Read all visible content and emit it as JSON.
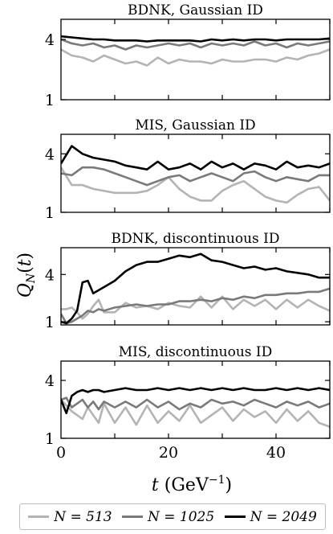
{
  "chart_data": [
    {
      "type": "line",
      "title": "BDNK, Gaussian ID",
      "ylim": [
        1,
        5
      ],
      "yticks": [
        "4",
        "1"
      ],
      "xlim": [
        0,
        50
      ],
      "x": [
        0,
        2,
        4,
        6,
        8,
        10,
        12,
        14,
        16,
        18,
        20,
        22,
        24,
        26,
        28,
        30,
        32,
        34,
        36,
        38,
        40,
        42,
        44,
        46,
        48,
        50
      ],
      "series": [
        {
          "name": "N = 513",
          "color": "#b4b4b4",
          "values": [
            3.5,
            3.2,
            3.1,
            2.9,
            3.2,
            3.0,
            2.8,
            2.9,
            2.7,
            3.1,
            2.8,
            3.0,
            2.9,
            2.9,
            2.8,
            3.0,
            2.9,
            2.9,
            3.0,
            3.0,
            2.9,
            3.1,
            3.0,
            3.2,
            3.3,
            3.5
          ]
        },
        {
          "name": "N = 1025",
          "color": "#7a7a7a",
          "values": [
            4.0,
            3.8,
            3.7,
            3.8,
            3.6,
            3.7,
            3.5,
            3.7,
            3.6,
            3.7,
            3.8,
            3.7,
            3.8,
            3.6,
            3.8,
            3.7,
            3.8,
            3.7,
            3.9,
            3.7,
            3.8,
            3.6,
            3.8,
            3.7,
            3.8,
            3.9
          ]
        },
        {
          "name": "N = 2049",
          "color": "#000000",
          "values": [
            4.15,
            4.1,
            4.05,
            4.0,
            4.0,
            3.95,
            3.95,
            3.95,
            3.9,
            3.95,
            3.95,
            3.95,
            3.95,
            3.9,
            4.0,
            3.95,
            4.0,
            3.95,
            4.0,
            4.0,
            3.95,
            4.0,
            4.0,
            4.0,
            4.0,
            4.05
          ]
        }
      ]
    },
    {
      "type": "line",
      "title": "MIS, Gaussian ID",
      "ylim": [
        1,
        5
      ],
      "yticks": [
        "4",
        "1"
      ],
      "xlim": [
        0,
        50
      ],
      "x": [
        0,
        2,
        4,
        6,
        8,
        10,
        12,
        14,
        16,
        18,
        20,
        22,
        24,
        26,
        28,
        30,
        32,
        34,
        36,
        38,
        40,
        42,
        44,
        46,
        48,
        50
      ],
      "series": [
        {
          "name": "N = 513",
          "color": "#b4b4b4",
          "values": [
            3.3,
            2.4,
            2.4,
            2.2,
            2.1,
            2.0,
            2.0,
            2.0,
            2.1,
            2.4,
            2.8,
            2.2,
            1.8,
            1.6,
            1.6,
            2.1,
            2.4,
            2.6,
            2.2,
            1.8,
            1.6,
            1.5,
            1.9,
            2.2,
            2.3,
            1.6
          ]
        },
        {
          "name": "N = 1025",
          "color": "#7a7a7a",
          "values": [
            3.0,
            2.9,
            3.3,
            3.3,
            3.2,
            3.0,
            2.8,
            2.6,
            2.4,
            2.6,
            2.8,
            2.9,
            2.6,
            2.8,
            3.0,
            2.8,
            2.6,
            3.0,
            3.1,
            2.8,
            2.6,
            2.8,
            2.7,
            2.6,
            2.9,
            2.9
          ]
        },
        {
          "name": "N = 2049",
          "color": "#000000",
          "values": [
            3.5,
            4.4,
            4.0,
            3.8,
            3.7,
            3.6,
            3.4,
            3.3,
            3.2,
            3.6,
            3.2,
            3.3,
            3.5,
            3.2,
            3.6,
            3.3,
            3.5,
            3.2,
            3.5,
            3.4,
            3.2,
            3.6,
            3.3,
            3.4,
            3.3,
            3.5
          ]
        }
      ]
    },
    {
      "type": "line",
      "title": "BDNK, discontinuous ID",
      "ylim": [
        0.8,
        5.7
      ],
      "yticks": [
        "4",
        "1"
      ],
      "xlim": [
        0,
        50
      ],
      "x": [
        0,
        1,
        2,
        3,
        4,
        5,
        6,
        7,
        8,
        10,
        12,
        14,
        16,
        18,
        20,
        22,
        24,
        26,
        28,
        30,
        32,
        34,
        36,
        38,
        40,
        42,
        44,
        46,
        48,
        50
      ],
      "series": [
        {
          "name": "N = 513",
          "color": "#b4b4b4",
          "values": [
            1.8,
            1.8,
            1.9,
            1.6,
            1.2,
            1.5,
            2.0,
            2.4,
            1.6,
            1.6,
            2.2,
            1.9,
            2.0,
            1.8,
            2.2,
            2.0,
            1.9,
            2.6,
            1.9,
            2.6,
            1.8,
            2.4,
            2.0,
            2.4,
            1.8,
            2.4,
            1.9,
            2.4,
            2.0,
            1.7
          ]
        },
        {
          "name": "N = 1025",
          "color": "#7a7a7a",
          "values": [
            1.5,
            0.9,
            1.0,
            1.2,
            1.4,
            1.7,
            1.6,
            1.8,
            1.7,
            1.9,
            2.0,
            2.1,
            2.0,
            2.1,
            2.1,
            2.3,
            2.3,
            2.4,
            2.3,
            2.5,
            2.4,
            2.6,
            2.5,
            2.7,
            2.7,
            2.8,
            2.8,
            2.9,
            2.9,
            3.1
          ]
        },
        {
          "name": "N = 2049",
          "color": "#000000",
          "values": [
            1.0,
            0.9,
            1.2,
            1.7,
            3.5,
            3.6,
            2.8,
            3.0,
            3.2,
            3.6,
            4.2,
            4.6,
            4.8,
            4.8,
            5.0,
            5.2,
            5.1,
            5.3,
            4.9,
            4.8,
            4.6,
            4.4,
            4.5,
            4.3,
            4.4,
            4.2,
            4.1,
            4.0,
            3.8,
            3.8
          ]
        }
      ]
    },
    {
      "type": "line",
      "title": "MIS, discontinuous ID",
      "ylim": [
        1,
        5
      ],
      "yticks": [
        "4",
        "1"
      ],
      "xlim": [
        0,
        50
      ],
      "xticks": [
        "0",
        "20",
        "40"
      ],
      "xtick_values": [
        0,
        20,
        40
      ],
      "x": [
        0,
        1,
        2,
        3,
        4,
        5,
        6,
        7,
        8,
        10,
        12,
        14,
        16,
        18,
        20,
        22,
        24,
        26,
        28,
        30,
        32,
        34,
        36,
        38,
        40,
        42,
        44,
        46,
        48,
        50
      ],
      "series": [
        {
          "name": "N = 513",
          "color": "#b4b4b4",
          "values": [
            3.0,
            2.7,
            2.4,
            2.2,
            2.0,
            2.6,
            2.2,
            1.8,
            2.8,
            1.8,
            2.6,
            1.7,
            2.7,
            1.8,
            2.4,
            1.9,
            2.7,
            1.8,
            2.2,
            2.6,
            1.9,
            2.5,
            2.1,
            2.4,
            1.8,
            2.5,
            1.9,
            2.4,
            1.8,
            1.6
          ]
        },
        {
          "name": "N = 1025",
          "color": "#7a7a7a",
          "values": [
            3.0,
            3.1,
            2.6,
            2.8,
            3.0,
            2.6,
            2.9,
            2.5,
            2.9,
            2.6,
            2.9,
            2.6,
            3.0,
            2.6,
            2.9,
            2.5,
            2.8,
            2.6,
            3.0,
            2.8,
            2.9,
            2.7,
            3.0,
            2.8,
            2.6,
            2.9,
            2.7,
            2.9,
            2.6,
            2.8
          ]
        },
        {
          "name": "N = 2049",
          "color": "#000000",
          "values": [
            3.0,
            2.3,
            3.2,
            3.4,
            3.5,
            3.4,
            3.5,
            3.5,
            3.4,
            3.5,
            3.6,
            3.5,
            3.5,
            3.6,
            3.5,
            3.6,
            3.5,
            3.6,
            3.5,
            3.6,
            3.5,
            3.6,
            3.5,
            3.5,
            3.6,
            3.5,
            3.6,
            3.5,
            3.6,
            3.5
          ]
        }
      ]
    }
  ],
  "ylabel": "Q_N(t)",
  "xlabel": "t (GeV^-1)",
  "legend": [
    {
      "label": "N = 513",
      "color": "#b4b4b4"
    },
    {
      "label": "N = 1025",
      "color": "#7a7a7a"
    },
    {
      "label": "N = 2049",
      "color": "#000000"
    }
  ]
}
